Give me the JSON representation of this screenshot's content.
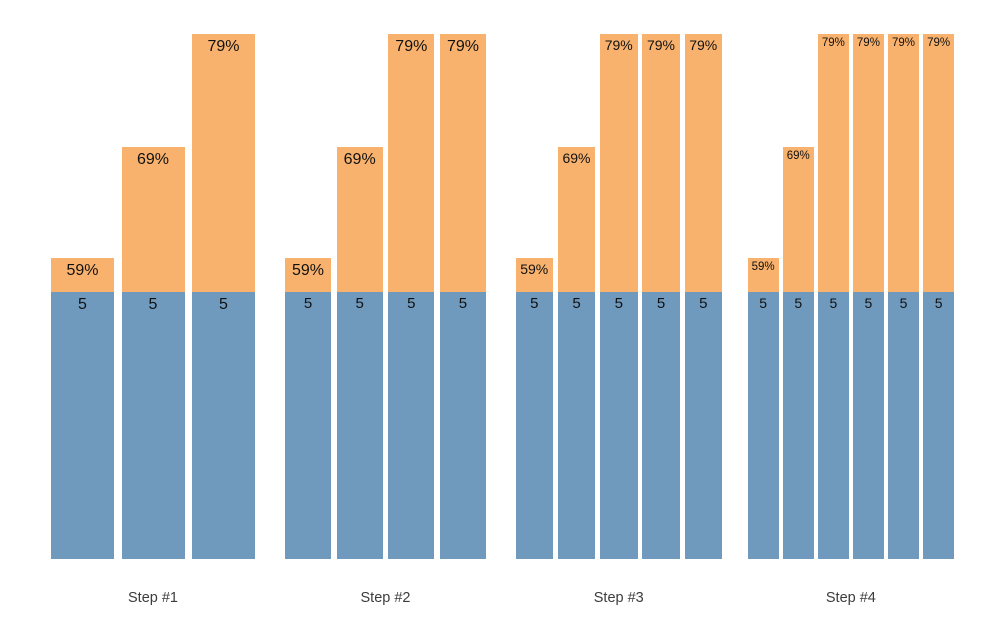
{
  "chart_data": {
    "type": "bar",
    "subtype": "stacked-vertical",
    "title": "",
    "xlabel": "",
    "ylabel": "",
    "axes_visible": false,
    "grid": false,
    "legend": "none",
    "background_color": "#ffffff",
    "colors": {
      "base_segment": "#6F9ABE",
      "top_segment": "#F9B26D",
      "bar_label_text": "#111111",
      "category_label_text": "#3c3c3c"
    },
    "categories": [
      "Step #1",
      "Step #2",
      "Step #3",
      "Step #4"
    ],
    "groups": [
      {
        "label": "Step #1",
        "bars": [
          {
            "base": 5,
            "rate": "59%"
          },
          {
            "base": 5,
            "rate": "69%"
          },
          {
            "base": 5,
            "rate": "79%"
          }
        ]
      },
      {
        "label": "Step #2",
        "bars": [
          {
            "base": 5,
            "rate": "59%"
          },
          {
            "base": 5,
            "rate": "69%"
          },
          {
            "base": 5,
            "rate": "79%"
          },
          {
            "base": 5,
            "rate": "79%"
          }
        ]
      },
      {
        "label": "Step #3",
        "bars": [
          {
            "base": 5,
            "rate": "59%"
          },
          {
            "base": 5,
            "rate": "69%"
          },
          {
            "base": 5,
            "rate": "79%"
          },
          {
            "base": 5,
            "rate": "79%"
          },
          {
            "base": 5,
            "rate": "79%"
          }
        ]
      },
      {
        "label": "Step #4",
        "bars": [
          {
            "base": 5,
            "rate": "59%"
          },
          {
            "base": 5,
            "rate": "69%"
          },
          {
            "base": 5,
            "rate": "79%"
          },
          {
            "base": 5,
            "rate": "79%"
          },
          {
            "base": 5,
            "rate": "79%"
          },
          {
            "base": 5,
            "rate": "79%"
          }
        ]
      }
    ]
  }
}
